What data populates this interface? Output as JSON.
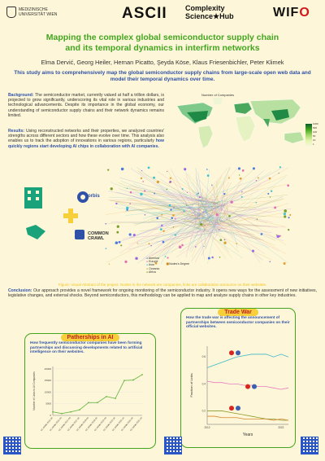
{
  "logos": {
    "university": [
      "MEDIZINISCHE",
      "UNIVERSITÄT WIEN"
    ],
    "ascii": "ASCII",
    "csh": [
      "Complexity",
      "Science★Hub"
    ],
    "wifo_left": "WIF",
    "wifo_o": "O"
  },
  "title_line1": "Mapping the complex global semiconductor supply chain",
  "title_line2": "and its temporal dynamics in interfirm networks",
  "authors": "Elma Dervić, Georg Heiler, Hernan Picatto, Şeyda Köse, Klaus Friesenbichler, Peter Klimek",
  "aim": "This study aims to comprehensively map the global semiconductor supply chains from large-scale open web data and model their temporal dynamics over time.",
  "background": {
    "label": "Background:",
    "text": " The semiconductor market, currently valued at half a trillion dollars, is projected to grow significantly, underscoring its vital role in various industries and technological advancements. Despite its importance in the global economy, our understanding of semiconductor supply chains and their network dynamics remains limited."
  },
  "results": {
    "label": "Results:",
    "text": " Using reconstructed networks and their properties, we analyzed countries' strengths across different sectors and how these evolve over time. This analysis also enables us to track the adoption of innovations in various regions, particularly ",
    "highlight": "how quickly regions start developing AI chips in collaboration with AI companies."
  },
  "map": {
    "title": "Number of Companies",
    "legend": [
      "1000",
      "500",
      "100",
      "50",
      "10",
      "1"
    ]
  },
  "sources": {
    "orbis": "orbis",
    "commoncrawl": [
      "COMMON",
      "CRAWL"
    ]
  },
  "network_legend": [
    "America",
    "Europe",
    "Asia",
    "Oceania",
    "Africa"
  ],
  "network_legend_extra": "Nodes's Degree",
  "caption": "Figure: Visual Abstract of the project. Nodes in the network are companies, links are collaboration announce on their websites.",
  "conclusion": {
    "label": "Conclusion:",
    "text": " Our approach provides a novel framework for ongoing monitoring of the semiconductor industry. It opens new ways for the assessment of new initiatives, legislative changes, and external shocks. Beyond semiconductors, this methodology can be applied to map and analyze supply chains in other key industries."
  },
  "ai_panel": {
    "title": "Patherships in AI",
    "question": "How frequently semiconductor companies have been forming partnerships and discussing developments related to artificial intelligence on their websites."
  },
  "trade_panel": {
    "title": "Trade War",
    "question": "How the trade war is affecting the announcement of partnerships between semiconductor companies on their official websites."
  },
  "colors": {
    "green": "#43a520",
    "blue": "#2f52a8",
    "yellow": "#f7cf3b",
    "red": "#c02020"
  },
  "chart_data": [
    {
      "type": "line",
      "title": "",
      "ylabel": "Number of Links to AI Companies",
      "x": [
        "CC-MAIN-2016-26",
        "CC-MAIN-2016-40",
        "CC-MAIN-2017-09",
        "CC-MAIN-2017-26",
        "CC-MAIN-2018-09",
        "CC-MAIN-2018-26",
        "CC-MAIN-2019-09",
        "CC-MAIN-2019-26",
        "CC-MAIN-2020-10",
        "CC-MAIN-2020-34",
        "CC-MAIN-2021-10"
      ],
      "values": [
        1500,
        800,
        1500,
        2400,
        5500,
        5500,
        8100,
        7300,
        15000,
        15200,
        17500
      ],
      "yticks": [
        0,
        5000,
        10000,
        15000,
        20000
      ],
      "ylim": [
        0,
        21000
      ]
    },
    {
      "type": "line",
      "xlabel": "Years",
      "ylabel": "Fraction of Links",
      "x": [
        2012,
        2013,
        2014,
        2015,
        2016,
        2017,
        2018,
        2019,
        2020,
        2021,
        2022,
        2023
      ],
      "xticks": [
        2012,
        2022
      ],
      "yticks": [
        0.2,
        0.4,
        0.6
      ],
      "ylim": [
        0.1,
        0.68
      ],
      "series": [
        {
          "color": "#3fb7c9",
          "values": [
            0.52,
            0.54,
            0.56,
            0.58,
            0.6,
            0.61,
            0.62,
            0.62,
            0.62,
            0.6,
            0.62,
            0.6
          ]
        },
        {
          "color": "#e87bc0",
          "values": [
            0.42,
            0.41,
            0.41,
            0.4,
            0.4,
            0.39,
            0.39,
            0.38,
            0.38,
            0.37,
            0.36,
            0.37
          ]
        },
        {
          "color": "#8b9a2a",
          "values": [
            0.2,
            0.2,
            0.2,
            0.19,
            0.18,
            0.17,
            0.16,
            0.15,
            0.14,
            0.14,
            0.13,
            0.13
          ]
        },
        {
          "color": "#d4862f",
          "values": [
            0.16,
            0.16,
            0.15,
            0.15,
            0.15,
            0.14,
            0.14,
            0.14,
            0.14,
            0.13,
            0.14,
            0.13
          ]
        }
      ]
    }
  ]
}
